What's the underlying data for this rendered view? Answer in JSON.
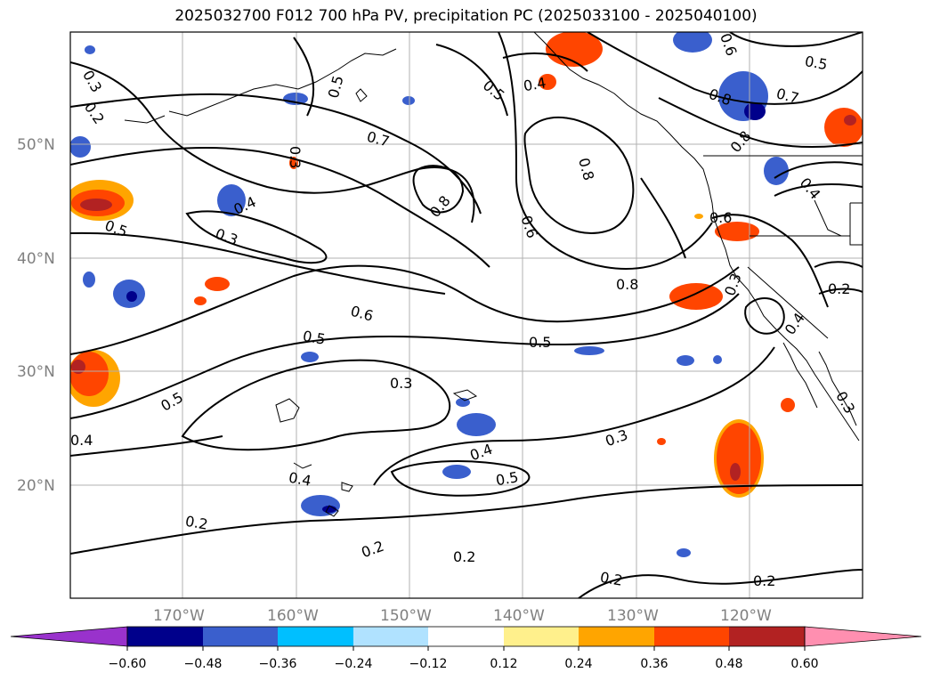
{
  "title": "2025032700 F012 700 hPa PV, precipitation PC (2025033100 - 2025040100)",
  "latitude_labels": [
    "50°N",
    "40°N",
    "30°N",
    "20°N"
  ],
  "longitude_labels": [
    "170°W",
    "160°W",
    "150°W",
    "140°W",
    "130°W",
    "120°W"
  ],
  "contour_labels": [
    "0.3",
    "0.2",
    "0.5",
    "0.4",
    "0.5",
    "0.3",
    "0.6",
    "0.5",
    "0.3",
    "0.5",
    "0.4",
    "0.4",
    "0.2",
    "0.2",
    "0.2",
    "0.7",
    "0.8",
    "0.5",
    "0.4",
    "0.8",
    "0.6",
    "0.8",
    "0.5",
    "0.3",
    "0.3",
    "0.4",
    "0.5",
    "0.2",
    "0.2",
    "0.6",
    "0.5",
    "0.7",
    "0.8",
    "0.8",
    "0.6",
    "0.4",
    "0.3",
    "0.4",
    "0.2",
    "0.3"
  ],
  "colorbar": {
    "tick_labels": [
      "−0.60",
      "−0.48",
      "−0.36",
      "−0.24",
      "−0.12",
      "0.12",
      "0.24",
      "0.36",
      "0.48",
      "0.60"
    ],
    "colors": [
      "#9932cc",
      "#00008b",
      "#3a5fcd",
      "#00bfff",
      "#b0e2ff",
      "#ffffff",
      "#fff08c",
      "#ffa500",
      "#ff4500",
      "#b22222",
      "#ff8fb0"
    ]
  }
}
